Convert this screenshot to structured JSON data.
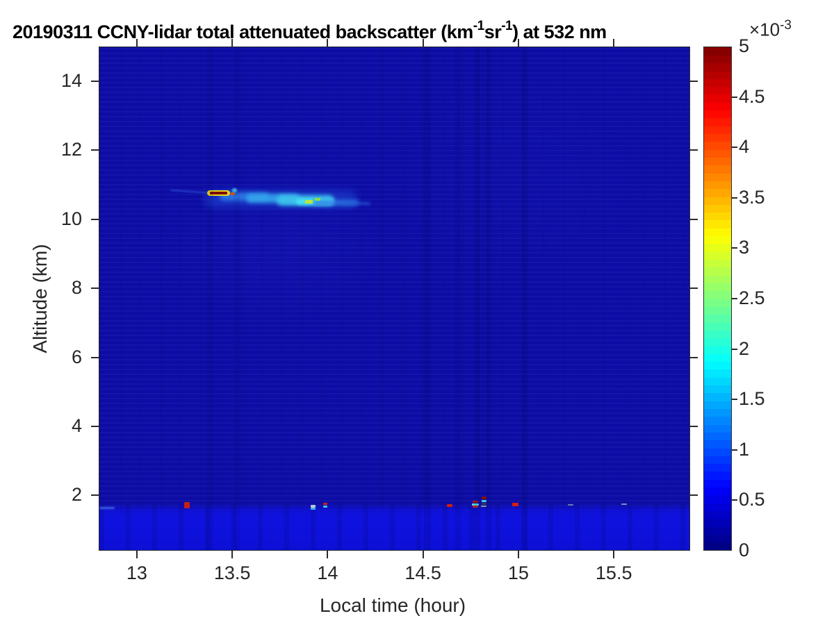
{
  "title": {
    "part1": "20190311 CCNY-lidar total attenuated backscatter (km",
    "sup1": "-1",
    "part2": "sr",
    "sup2": "-1",
    "part3": ") at 532 nm"
  },
  "colorbar": {
    "exp_base": "×10",
    "exp_sup": "-3",
    "tick_labels": [
      "5",
      "4.5",
      "4",
      "3.5",
      "3",
      "2.5",
      "2",
      "1.5",
      "1",
      "0.5",
      "0"
    ],
    "tick_values": [
      5,
      4.5,
      4,
      3.5,
      3,
      2.5,
      2,
      1.5,
      1,
      0.5,
      0
    ],
    "colormap": "jet",
    "levels": 64
  },
  "axes": {
    "x": {
      "label": "Local time (hour)",
      "tick_labels": [
        "13",
        "13.5",
        "14",
        "14.5",
        "15",
        "15.5"
      ],
      "tick_values": [
        13,
        13.5,
        14,
        14.5,
        15,
        15.5
      ],
      "range": [
        12.8,
        15.9
      ]
    },
    "y": {
      "label": "Altitude (km)",
      "tick_labels": [
        "14",
        "12",
        "10",
        "8",
        "6",
        "4",
        "2"
      ],
      "tick_values": [
        14,
        12,
        10,
        8,
        6,
        4,
        2
      ],
      "range": [
        0.4,
        15.0
      ]
    }
  },
  "chart_data": {
    "type": "heatmap",
    "title": "20190311 CCNY-lidar total attenuated backscatter (km-1 sr-1) at 532 nm",
    "xlabel": "Local time (hour)",
    "ylabel": "Altitude (km)",
    "x_range": [
      12.8,
      15.9
    ],
    "y_range": [
      0.4,
      15.0
    ],
    "colorbar_range": [
      0,
      5
    ],
    "colorbar_scale_exponent": -3,
    "colormap": "jet",
    "background_value": 0.15,
    "boundary_layer": {
      "top_km": 1.65,
      "value": 0.55
    },
    "cirrus_cloud": {
      "time_span": [
        13.2,
        14.2
      ],
      "altitude_span": [
        10.3,
        10.95
      ],
      "peak": {
        "time": 13.42,
        "altitude": 10.78,
        "value": 5.0
      }
    },
    "cloud_patches": [
      {
        "t": 13.28,
        "alt": 10.82,
        "w": 0.22,
        "h": 0.05,
        "color": "#2a52d8",
        "blur": 1,
        "op": 0.8,
        "rot": 4
      },
      {
        "t": 13.75,
        "alt": 10.6,
        "w": 0.8,
        "h": 0.5,
        "color": "#1b3cc8",
        "blur": 5,
        "op": 0.7
      },
      {
        "t": 13.56,
        "alt": 10.68,
        "w": 0.26,
        "h": 0.24,
        "color": "#2e7ae6",
        "blur": 3,
        "op": 0.9
      },
      {
        "t": 13.71,
        "alt": 10.62,
        "w": 0.28,
        "h": 0.26,
        "color": "#34a6ec",
        "blur": 3,
        "op": 0.9
      },
      {
        "t": 13.88,
        "alt": 10.57,
        "w": 0.3,
        "h": 0.3,
        "color": "#3cc2ee",
        "blur": 3,
        "op": 0.95
      },
      {
        "t": 13.93,
        "alt": 10.52,
        "w": 0.2,
        "h": 0.18,
        "color": "#49e2f2",
        "blur": 2,
        "op": 0.95
      },
      {
        "t": 14.04,
        "alt": 10.5,
        "w": 0.24,
        "h": 0.16,
        "color": "#2e7ae6",
        "blur": 3,
        "op": 0.85
      },
      {
        "t": 14.15,
        "alt": 10.47,
        "w": 0.14,
        "h": 0.08,
        "color": "#2256d2",
        "blur": 2,
        "op": 0.8
      },
      {
        "t": 13.9,
        "alt": 10.52,
        "w": 0.04,
        "h": 0.1,
        "color": "#bce63a",
        "blur": 0,
        "op": 1
      },
      {
        "t": 13.945,
        "alt": 10.6,
        "w": 0.03,
        "h": 0.07,
        "color": "#8ede48",
        "blur": 0,
        "op": 1
      },
      {
        "t": 13.425,
        "alt": 10.78,
        "w": 0.12,
        "h": 0.17,
        "color": "#ecd61a",
        "blur": 0,
        "op": 1,
        "r": 5
      },
      {
        "t": 13.425,
        "alt": 10.78,
        "w": 0.088,
        "h": 0.085,
        "color": "#7c0a06",
        "blur": 0,
        "op": 1
      },
      {
        "t": 13.5,
        "alt": 10.76,
        "w": 0.022,
        "h": 0.07,
        "color": "#d85010",
        "blur": 0,
        "op": 1
      },
      {
        "t": 13.51,
        "alt": 10.86,
        "w": 0.025,
        "h": 0.12,
        "color": "#44ccec",
        "blur": 1,
        "op": 0.9
      }
    ],
    "surface_specks": [
      {
        "t": 12.84,
        "alt": 1.66,
        "w": 0.08,
        "h": 0.05,
        "color": "#4468e8",
        "blur": 1,
        "op": 0.9
      },
      {
        "t": 13.26,
        "alt": 1.73,
        "w": 0.03,
        "h": 0.18,
        "color": "#c81e10",
        "blur": 0,
        "op": 1
      },
      {
        "t": 13.92,
        "alt": 1.7,
        "w": 0.025,
        "h": 0.08,
        "color": "#b8c8d8",
        "blur": 0,
        "op": 1
      },
      {
        "t": 13.92,
        "alt": 1.63,
        "w": 0.025,
        "h": 0.06,
        "color": "#38b8e8",
        "blur": 0,
        "op": 1
      },
      {
        "t": 13.985,
        "alt": 1.78,
        "w": 0.022,
        "h": 0.07,
        "color": "#d02010",
        "blur": 0,
        "op": 1
      },
      {
        "t": 13.985,
        "alt": 1.7,
        "w": 0.022,
        "h": 0.06,
        "color": "#40c0e8",
        "blur": 0,
        "op": 1
      },
      {
        "t": 14.635,
        "alt": 1.72,
        "w": 0.03,
        "h": 0.08,
        "color": "#d81c0c",
        "blur": 0,
        "op": 1
      },
      {
        "t": 14.77,
        "alt": 1.84,
        "w": 0.03,
        "h": 0.06,
        "color": "#b01810",
        "blur": 0,
        "op": 1
      },
      {
        "t": 14.77,
        "alt": 1.76,
        "w": 0.035,
        "h": 0.05,
        "color": "#50d8e8",
        "blur": 0,
        "op": 1
      },
      {
        "t": 14.77,
        "alt": 1.7,
        "w": 0.03,
        "h": 0.05,
        "color": "#c02818",
        "blur": 0,
        "op": 1
      },
      {
        "t": 14.815,
        "alt": 1.95,
        "w": 0.025,
        "h": 0.07,
        "color": "#801008",
        "blur": 0,
        "op": 1
      },
      {
        "t": 14.815,
        "alt": 1.86,
        "w": 0.025,
        "h": 0.05,
        "color": "#48c8e8",
        "blur": 0,
        "op": 1
      },
      {
        "t": 14.815,
        "alt": 1.78,
        "w": 0.025,
        "h": 0.05,
        "color": "#303858",
        "blur": 0,
        "op": 1
      },
      {
        "t": 14.815,
        "alt": 1.71,
        "w": 0.03,
        "h": 0.04,
        "color": "#8898a8",
        "blur": 0,
        "op": 1
      },
      {
        "t": 14.98,
        "alt": 1.75,
        "w": 0.03,
        "h": 0.1,
        "color": "#d41e0e",
        "blur": 0,
        "op": 1
      },
      {
        "t": 15.27,
        "alt": 1.74,
        "w": 0.03,
        "h": 0.04,
        "color": "#7888b0",
        "blur": 0,
        "op": 0.9
      },
      {
        "t": 15.55,
        "alt": 1.77,
        "w": 0.03,
        "h": 0.04,
        "color": "#90a0b8",
        "blur": 0,
        "op": 0.9
      }
    ],
    "dim_columns": [
      {
        "t": 13.38,
        "w": 0.035,
        "op": 0.08
      },
      {
        "t": 13.52,
        "w": 0.035,
        "op": 0.07
      },
      {
        "t": 14.52,
        "w": 0.035,
        "op": 0.12
      },
      {
        "t": 14.68,
        "w": 0.03,
        "op": 0.1
      },
      {
        "t": 14.78,
        "w": 0.03,
        "op": 0.12
      },
      {
        "t": 14.84,
        "w": 0.03,
        "op": 0.12
      },
      {
        "t": 15.03,
        "w": 0.035,
        "op": 0.1
      }
    ]
  }
}
